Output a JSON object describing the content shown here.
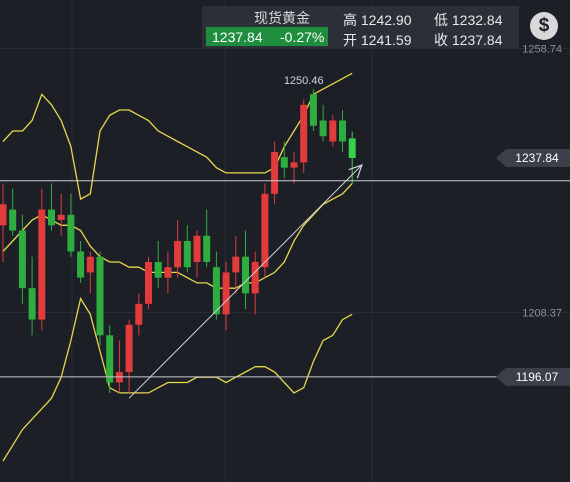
{
  "quote": {
    "title": "现货黄金",
    "price": "1237.84",
    "change": "-0.27%",
    "high_label": "高 1242.90",
    "low_label": "低 1232.84",
    "open_label": "开 1241.59",
    "close_label": "收 1237.84"
  },
  "icons": {
    "currency": "dollar-icon"
  },
  "chart_data": {
    "type": "candlestick",
    "y_ticks": [
      "1258.74",
      "1208.37"
    ],
    "price_tag": "1237.84",
    "support_tag": "1196.07",
    "peak_label": "1250.46",
    "ylim": [
      1176.0,
      1268.0
    ],
    "candles": [
      {
        "o": 1225.0,
        "h": 1233.0,
        "l": 1218.0,
        "c": 1229.0
      },
      {
        "o": 1228.0,
        "h": 1232.0,
        "l": 1223.0,
        "c": 1224.0
      },
      {
        "o": 1224.0,
        "h": 1227.0,
        "l": 1210.0,
        "c": 1213.0
      },
      {
        "o": 1213.0,
        "h": 1219.0,
        "l": 1204.0,
        "c": 1207.0
      },
      {
        "o": 1207.0,
        "h": 1232.0,
        "l": 1205.0,
        "c": 1228.0
      },
      {
        "o": 1228.0,
        "h": 1233.0,
        "l": 1224.0,
        "c": 1225.0
      },
      {
        "o": 1226.0,
        "h": 1231.0,
        "l": 1223.0,
        "c": 1227.0
      },
      {
        "o": 1227.0,
        "h": 1231.0,
        "l": 1219.0,
        "c": 1220.0
      },
      {
        "o": 1220.0,
        "h": 1222.0,
        "l": 1214.0,
        "c": 1215.0
      },
      {
        "o": 1216.0,
        "h": 1220.0,
        "l": 1212.0,
        "c": 1219.0
      },
      {
        "o": 1219.0,
        "h": 1220.0,
        "l": 1202.0,
        "c": 1204.0
      },
      {
        "o": 1204.0,
        "h": 1206.0,
        "l": 1193.0,
        "c": 1195.0
      },
      {
        "o": 1195.0,
        "h": 1203.0,
        "l": 1193.0,
        "c": 1197.0
      },
      {
        "o": 1197.0,
        "h": 1207.0,
        "l": 1193.0,
        "c": 1206.0
      },
      {
        "o": 1206.0,
        "h": 1212.0,
        "l": 1204.0,
        "c": 1210.0
      },
      {
        "o": 1210.0,
        "h": 1219.0,
        "l": 1209.0,
        "c": 1218.0
      },
      {
        "o": 1218.0,
        "h": 1222.0,
        "l": 1213.0,
        "c": 1215.0
      },
      {
        "o": 1215.0,
        "h": 1220.0,
        "l": 1212.0,
        "c": 1217.0
      },
      {
        "o": 1217.0,
        "h": 1226.0,
        "l": 1215.0,
        "c": 1222.0
      },
      {
        "o": 1222.0,
        "h": 1225.0,
        "l": 1216.0,
        "c": 1217.0
      },
      {
        "o": 1218.0,
        "h": 1224.0,
        "l": 1215.0,
        "c": 1223.0
      },
      {
        "o": 1223.0,
        "h": 1228.0,
        "l": 1217.0,
        "c": 1218.0
      },
      {
        "o": 1217.0,
        "h": 1220.0,
        "l": 1207.0,
        "c": 1208.0
      },
      {
        "o": 1208.0,
        "h": 1218.0,
        "l": 1205.0,
        "c": 1216.0
      },
      {
        "o": 1216.0,
        "h": 1223.0,
        "l": 1212.0,
        "c": 1219.0
      },
      {
        "o": 1219.0,
        "h": 1224.0,
        "l": 1209.0,
        "c": 1212.0
      },
      {
        "o": 1212.0,
        "h": 1220.0,
        "l": 1208.0,
        "c": 1218.0
      },
      {
        "o": 1217.0,
        "h": 1233.0,
        "l": 1215.0,
        "c": 1231.0
      },
      {
        "o": 1231.0,
        "h": 1241.0,
        "l": 1229.0,
        "c": 1239.0
      },
      {
        "o": 1238.0,
        "h": 1241.0,
        "l": 1234.0,
        "c": 1236.0
      },
      {
        "o": 1236.0,
        "h": 1239.0,
        "l": 1233.0,
        "c": 1237.0
      },
      {
        "o": 1237.0,
        "h": 1249.0,
        "l": 1235.0,
        "c": 1248.0
      },
      {
        "o": 1250.0,
        "h": 1251.0,
        "l": 1243.0,
        "c": 1244.0
      },
      {
        "o": 1245.0,
        "h": 1248.0,
        "l": 1241.0,
        "c": 1242.0
      },
      {
        "o": 1241.0,
        "h": 1246.0,
        "l": 1240.0,
        "c": 1245.0
      },
      {
        "o": 1245.0,
        "h": 1247.0,
        "l": 1239.0,
        "c": 1241.0
      },
      {
        "o": 1241.59,
        "h": 1242.9,
        "l": 1232.84,
        "c": 1237.84
      }
    ],
    "upper_band": [
      1241,
      1243,
      1243,
      1245,
      1250,
      1248,
      1245,
      1240,
      1230,
      1231,
      1243,
      1246,
      1247,
      1247,
      1246,
      1245,
      1243,
      1242,
      1241,
      1240,
      1239,
      1238,
      1236,
      1235,
      1235,
      1235,
      1235,
      1235,
      1236,
      1240,
      1243,
      1246,
      1250,
      1251,
      1252,
      1253,
      1254
    ],
    "middle_band": [
      1220,
      1222,
      1224,
      1226,
      1227,
      1226,
      1225,
      1225,
      1224,
      1221,
      1219,
      1218,
      1218,
      1217,
      1217,
      1216,
      1216,
      1216,
      1216,
      1215,
      1214,
      1214,
      1213,
      1213,
      1213,
      1214,
      1214,
      1215,
      1216,
      1218,
      1222,
      1225,
      1227,
      1229,
      1230,
      1231,
      1233
    ],
    "lower_band": [
      1180,
      1183,
      1186,
      1188,
      1190,
      1192,
      1196,
      1203,
      1211,
      1208,
      1201,
      1194,
      1193,
      1193,
      1193,
      1193,
      1194,
      1195,
      1195,
      1195,
      1196,
      1196,
      1196,
      1195,
      1196,
      1197,
      1198,
      1198,
      1197,
      1195,
      1193,
      1194,
      1199,
      1203,
      1204,
      1207,
      1208
    ],
    "trendline": {
      "from": {
        "i": 13,
        "v": 1192.0
      },
      "to": {
        "i": 37,
        "v": 1236.5
      }
    }
  }
}
